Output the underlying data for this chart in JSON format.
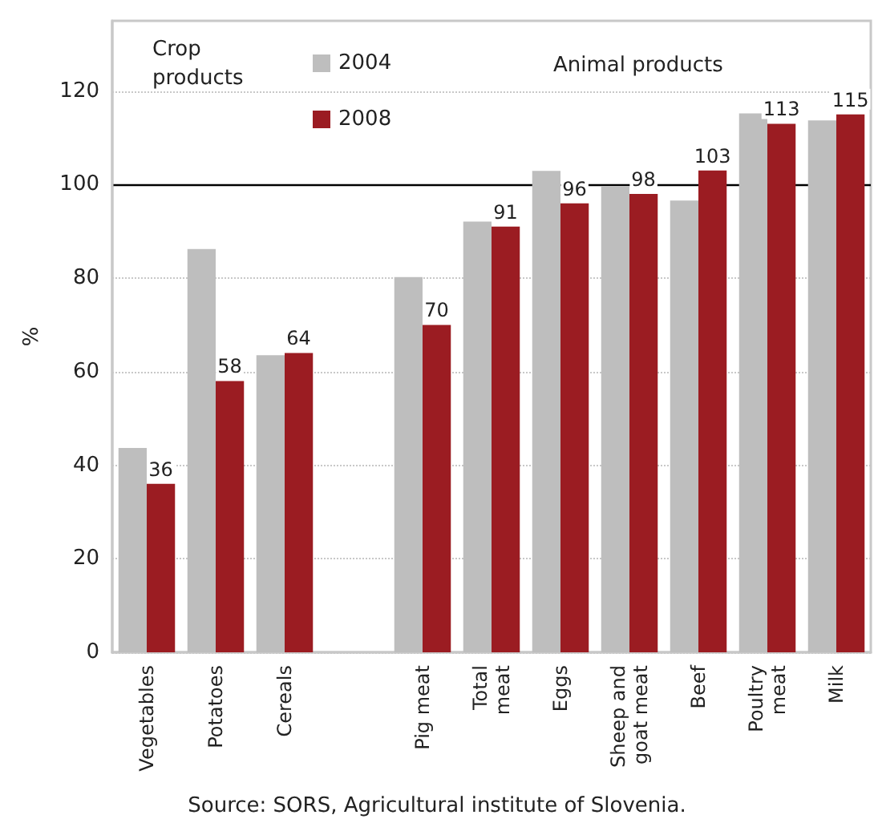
{
  "chart_data": {
    "type": "bar",
    "ylabel": "%",
    "categories": [
      "Vegetables",
      "Potatoes",
      "Cereals",
      null,
      "Pig meat",
      "Total meat",
      "Eggs",
      "Sheep and goat meat",
      "Beef",
      "Poultry meat",
      "Milk"
    ],
    "series": [
      {
        "name": "2004",
        "color": "#bebebe",
        "values": [
          43.7,
          86.2,
          63.5,
          null,
          80.2,
          92.1,
          102.9,
          99.7,
          96.6,
          115.2,
          113.7
        ]
      },
      {
        "name": "2008",
        "color": "#9b1c22",
        "values": [
          36,
          58,
          64,
          null,
          70,
          91,
          96,
          98,
          103,
          113,
          115
        ],
        "value_labels": [
          "36",
          "58",
          "64",
          null,
          "70",
          "91",
          "96",
          "98",
          "103",
          "113",
          "115"
        ]
      }
    ],
    "ylim": [
      0,
      135
    ],
    "yticks": [
      0,
      20,
      40,
      60,
      80,
      100,
      120
    ],
    "grid": "y",
    "legend": "top",
    "ref_lines": [
      {
        "axis": "y",
        "value": 100,
        "color": "#000000"
      }
    ],
    "annotations": [
      "Crop products",
      "Animal products",
      "Source: SORS, Agricultural institute of Slovenia."
    ]
  }
}
